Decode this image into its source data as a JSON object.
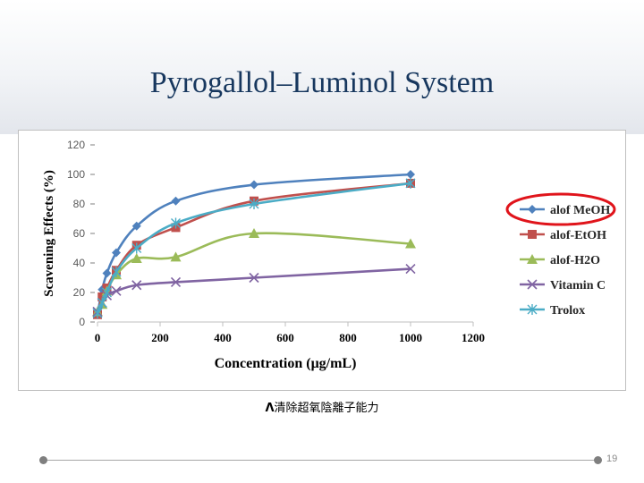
{
  "slide": {
    "title": "Pyrogallol–Luminol System",
    "caption": "清除超氧陰離子能力",
    "page_number": "19"
  },
  "chart_data": {
    "type": "line",
    "xlabel": "Concentration (μg/mL)",
    "ylabel": "Scavening Effects  (%)",
    "xlim": [
      0,
      1200
    ],
    "ylim": [
      0,
      120
    ],
    "xticks": [
      "0",
      "200",
      "400",
      "600",
      "800",
      "1000",
      "1200"
    ],
    "yticks": [
      "0",
      "20",
      "40",
      "60",
      "80",
      "100",
      "120"
    ],
    "grid": false,
    "legend_position": "right",
    "legend_highlight": "alof MeOH",
    "series": [
      {
        "name": "alof MeOH",
        "color": "#4f81bd",
        "marker": "diamond",
        "x": [
          0,
          15,
          30,
          60,
          125,
          250,
          500,
          1000
        ],
        "y": [
          5,
          22,
          33,
          47,
          65,
          82,
          93,
          100
        ]
      },
      {
        "name": "alof-EtOH",
        "color": "#c0504d",
        "marker": "square",
        "x": [
          0,
          15,
          30,
          60,
          125,
          250,
          500,
          1000
        ],
        "y": [
          5,
          17,
          23,
          35,
          52,
          64,
          82,
          94
        ]
      },
      {
        "name": "alof-H2O",
        "color": "#9bbb59",
        "marker": "triangle",
        "x": [
          0,
          15,
          30,
          60,
          125,
          250,
          500,
          1000
        ],
        "y": [
          7,
          12,
          21,
          32,
          43,
          44,
          60,
          53
        ]
      },
      {
        "name": "Vitamin C",
        "color": "#8064a2",
        "marker": "x",
        "x": [
          0,
          15,
          30,
          60,
          125,
          250,
          500,
          1000
        ],
        "y": [
          7,
          13,
          18,
          21,
          25,
          27,
          30,
          36
        ]
      },
      {
        "name": "Trolox",
        "color": "#4bacc6",
        "marker": "star",
        "x": [
          0,
          15,
          30,
          60,
          125,
          250,
          500,
          1000
        ],
        "y": [
          6,
          13,
          20,
          34,
          50,
          67,
          80,
          94
        ]
      }
    ]
  }
}
